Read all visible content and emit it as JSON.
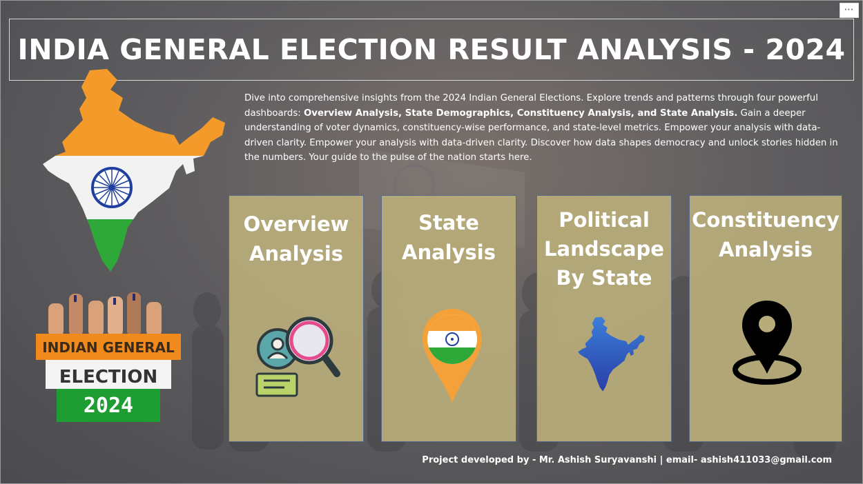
{
  "app": {
    "title": "INDIA GENERAL ELECTION RESULT ANALYSIS - 2024",
    "more_options": "⋯"
  },
  "intro": {
    "part1": "Dive into comprehensive insights from the 2024 Indian General Elections. Explore trends and patterns through four powerful dashboards: ",
    "bold": "Overview Analysis, State Demographics, Constituency Analysis, and State Analysis.",
    "part2": " Gain a deeper understanding of voter dynamics, constituency-wise performance, and state-level metrics. Empower your analysis with data-driven clarity. Empower your analysis with data-driven clarity. Discover how data shapes democracy and unlock stories hidden in the numbers. Your guide to the pulse of the nation starts here."
  },
  "badge": {
    "line1": "INDIAN GENERAL",
    "line2": "ELECTION",
    "line3": "2024"
  },
  "cards": [
    {
      "lines": [
        "Overview",
        "Analysis"
      ],
      "icon": "magnifier-user-icon"
    },
    {
      "lines": [
        "State",
        "Analysis"
      ],
      "icon": "india-flag-pin-icon"
    },
    {
      "lines": [
        "Political",
        "Landscape",
        "By State"
      ],
      "icon": "india-map-icon"
    },
    {
      "lines": [
        "Constituency",
        "Analysis"
      ],
      "icon": "location-pin-icon"
    }
  ],
  "footer": {
    "text": "Project developed by - Mr. Ashish Suryavanshi  |  email- ashish411033@gmail.com"
  },
  "colors": {
    "card_bg": "#b8ac7a",
    "saffron": "#f39a2b",
    "green": "#2fa83a",
    "navy": "#1f3f9e"
  }
}
